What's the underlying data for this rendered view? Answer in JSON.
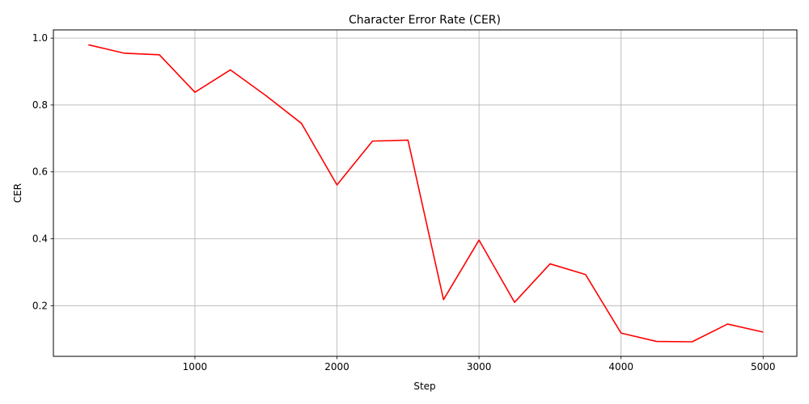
{
  "chart_data": {
    "type": "line",
    "title": "Character Error Rate (CER)",
    "xlabel": "Step",
    "ylabel": "CER",
    "grid": true,
    "xlim": [
      3.75,
      5237.5
    ],
    "ylim": [
      0.0485,
      1.0245
    ],
    "xticks": [
      1000,
      2000,
      3000,
      4000,
      5000
    ],
    "yticks": [
      0.2,
      0.4,
      0.6,
      0.8,
      1.0
    ],
    "xtick_labels": [
      "1000",
      "2000",
      "3000",
      "4000",
      "5000"
    ],
    "ytick_labels": [
      "0.2",
      "0.4",
      "0.6",
      "0.8",
      "1.0"
    ],
    "series": [
      {
        "color": "#ff0000",
        "x": [
          250,
          500,
          750,
          1000,
          1250,
          1500,
          1750,
          2000,
          2250,
          2500,
          2750,
          3000,
          3250,
          3500,
          3750,
          4000,
          4250,
          4500,
          4750,
          5000
        ],
        "y": [
          0.98,
          0.955,
          0.95,
          0.838,
          0.905,
          0.828,
          0.745,
          0.561,
          0.692,
          0.695,
          0.218,
          0.396,
          0.21,
          0.325,
          0.293,
          0.118,
          0.093,
          0.092,
          0.145,
          0.121
        ]
      }
    ]
  }
}
